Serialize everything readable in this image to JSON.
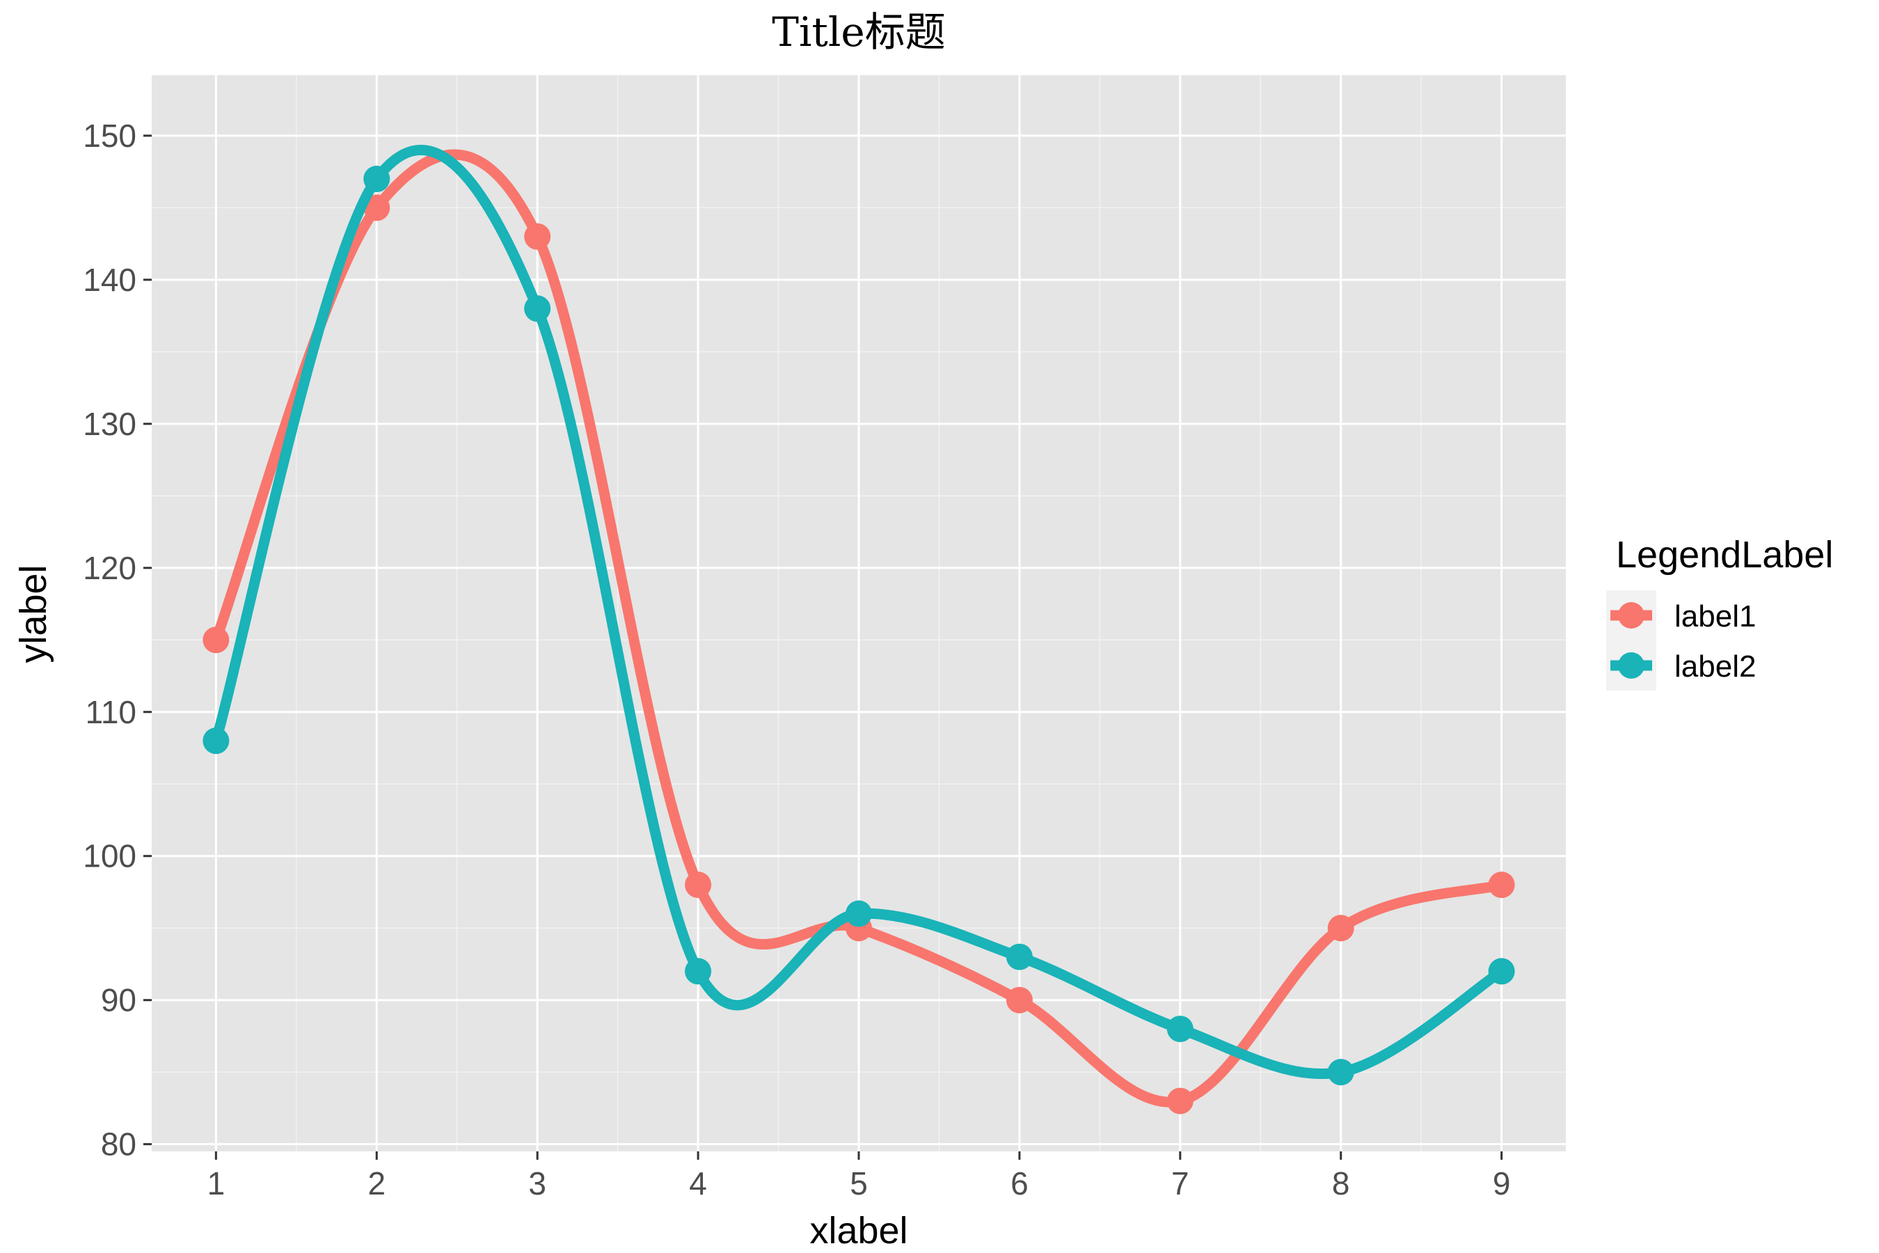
{
  "chart_data": {
    "type": "line",
    "title": "Title标题",
    "xlabel": "xlabel",
    "ylabel": "ylabel",
    "x": [
      1,
      2,
      3,
      4,
      5,
      6,
      7,
      8,
      9
    ],
    "xlim": [
      0.6,
      9.4
    ],
    "ylim": [
      79.5,
      154.2
    ],
    "x_ticks": [
      1,
      2,
      3,
      4,
      5,
      6,
      7,
      8,
      9
    ],
    "y_ticks": [
      80,
      90,
      100,
      110,
      120,
      130,
      140,
      150
    ],
    "grid": true,
    "smoothed": true,
    "markers": true,
    "legend_title": "LegendLabel",
    "legend_position": "right",
    "panel_background": "#e5e5e5",
    "series": [
      {
        "name": "label1",
        "color": "#f8766d",
        "values": [
          115,
          145,
          143,
          98,
          95,
          90,
          83,
          95,
          98
        ]
      },
      {
        "name": "label2",
        "color": "#19b3b8",
        "values": [
          108,
          147,
          138,
          92,
          96,
          93,
          88,
          85,
          92
        ]
      }
    ]
  }
}
